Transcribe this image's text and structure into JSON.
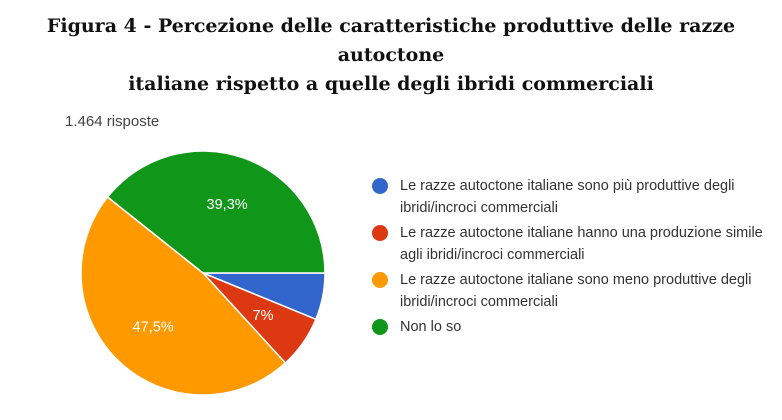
{
  "figure": {
    "title_line1": "Figura 4 - Percezione delle caratteristiche produttive delle razze autoctone",
    "title_line2": "italiane rispetto a quelle degli ibridi commerciali",
    "responses": "1.464 risposte"
  },
  "chart_data": {
    "type": "pie",
    "title": "Figura 4 - Percezione delle caratteristiche produttive delle razze autoctone italiane rispetto a quelle degli ibridi commerciali",
    "legend_position": "right",
    "slices": [
      {
        "label": "Le razze autoctone italiane sono più produttive degli ibridi/incroci commerciali",
        "value": 6.2,
        "value_label": "",
        "color": "#3366cc"
      },
      {
        "label": "Le razze autoctone italiane hanno una produzione simile agli ibridi/incroci commerciali",
        "value": 7.0,
        "value_label": "7%",
        "color": "#dc3912"
      },
      {
        "label": "Le razze autoctone italiane sono meno produttive degli ibridi/incroci commerciali",
        "value": 47.5,
        "value_label": "47,5%",
        "color": "#ff9900"
      },
      {
        "label": "Non lo so",
        "value": 39.3,
        "value_label": "39,3%",
        "color": "#109618"
      }
    ]
  }
}
